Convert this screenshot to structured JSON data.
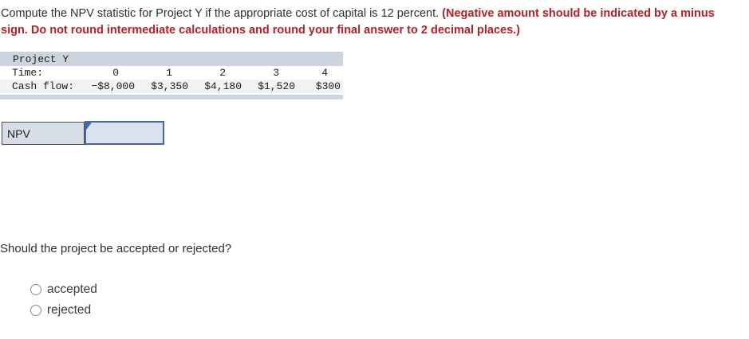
{
  "instructions": {
    "normal": "Compute the NPV statistic for Project Y if the appropriate cost of capital is 12 percent. ",
    "emphasis": "(Negative amount should be indicated by a minus sign. Do not round intermediate calculations and round your final answer to 2 decimal places.)"
  },
  "project_table": {
    "title": "Project Y",
    "rows": [
      {
        "label": "Time:",
        "values": [
          "0",
          "1",
          "2",
          "3",
          "4"
        ]
      },
      {
        "label": "Cash flow:",
        "values": [
          "−$8,000",
          "$3,350",
          "$4,180",
          "$1,520",
          "$300"
        ]
      }
    ]
  },
  "npv": {
    "label": "NPV",
    "value": "",
    "placeholder": ""
  },
  "question": {
    "text": "Should the project be accepted or rejected?",
    "options": [
      {
        "label": "accepted",
        "selected": false
      },
      {
        "label": "rejected",
        "selected": false
      }
    ]
  },
  "colors": {
    "emphasis_red": "#b12126",
    "table_band": "#ccd4e0",
    "table_row_alt": "#f2f2f2",
    "npv_label_bg": "#d8dee7",
    "npv_input_bg": "#dbe2ee",
    "npv_input_border": "#44699d",
    "text": "#2f2f2f"
  }
}
